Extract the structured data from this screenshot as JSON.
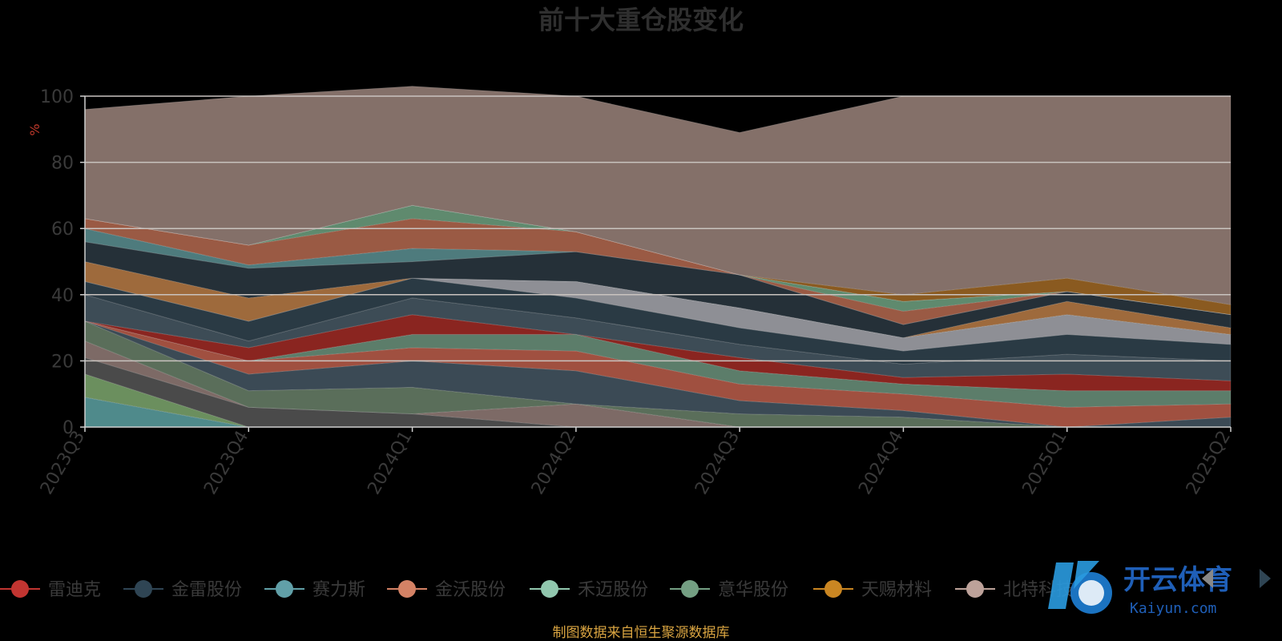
{
  "chart_data": {
    "type": "area",
    "title": "前十大重仓股变化",
    "ylabel": "%",
    "ylim": [
      0,
      100
    ],
    "yticks": [
      0,
      20,
      40,
      60,
      80,
      100
    ],
    "categories": [
      "2023Q3",
      "2023Q4",
      "2024Q1",
      "2024Q2",
      "2024Q3",
      "2024Q4",
      "2025Q1",
      "2025Q2"
    ],
    "grid": true,
    "legend_position": "bottom",
    "stacked": true,
    "series": [
      {
        "name": "",
        "color": "#4f8a8b",
        "values": [
          9,
          0,
          0,
          0,
          0,
          0,
          0,
          0
        ]
      },
      {
        "name": "",
        "color": "#6b8f5e",
        "values": [
          7,
          0,
          0,
          0,
          0,
          0,
          0,
          0
        ]
      },
      {
        "name": "",
        "color": "#4a4a4a",
        "values": [
          5,
          6,
          4,
          0,
          0,
          0,
          0,
          0
        ]
      },
      {
        "name": "",
        "color": "#7d6a66",
        "values": [
          5,
          0,
          0,
          7,
          0,
          0,
          0,
          0
        ]
      },
      {
        "name": "",
        "color": "#5a6e5a",
        "values": [
          6,
          5,
          8,
          0,
          4,
          3,
          0,
          0
        ]
      },
      {
        "name": "",
        "color": "#3b4a55",
        "values": [
          0,
          5,
          8,
          10,
          4,
          2,
          0,
          3
        ]
      },
      {
        "name": "",
        "color": "#a05040",
        "values": [
          0,
          4,
          4,
          6,
          5,
          5,
          6,
          4
        ]
      },
      {
        "name": "",
        "color": "#5c7d6a",
        "values": [
          0,
          0,
          4,
          5,
          4,
          3,
          5,
          4
        ]
      },
      {
        "name": "",
        "color": "#8a2520",
        "values": [
          0,
          4,
          6,
          0,
          4,
          2,
          5,
          3
        ]
      },
      {
        "name": "",
        "color": "#3d4c56",
        "values": [
          8,
          2,
          5,
          5,
          4,
          4,
          6,
          6
        ]
      },
      {
        "name": "",
        "color": "#2a3a44",
        "values": [
          4,
          6,
          6,
          6,
          5,
          4,
          6,
          5
        ]
      },
      {
        "name": "",
        "color": "#8e8f95",
        "values": [
          0,
          0,
          0,
          5,
          6,
          4,
          6,
          3
        ]
      },
      {
        "name": "",
        "color": "#9e6a3c",
        "values": [
          6,
          7,
          0,
          0,
          0,
          0,
          4,
          2
        ]
      },
      {
        "name": "",
        "color": "#253038",
        "values": [
          6,
          9,
          5,
          9,
          10,
          4,
          3,
          4
        ]
      },
      {
        "name": "",
        "color": "#4e7b7d",
        "values": [
          4,
          1,
          4,
          0,
          0,
          0,
          0,
          0
        ]
      },
      {
        "name": "",
        "color": "#9a5a44",
        "values": [
          3,
          6,
          9,
          6,
          0,
          4,
          0,
          0
        ]
      },
      {
        "name": "",
        "color": "#5f8a6e",
        "values": [
          0,
          0,
          4,
          0,
          0,
          3,
          0,
          0
        ]
      },
      {
        "name": "",
        "color": "#2f6a4e",
        "values": [
          0,
          0,
          0,
          0,
          0,
          0,
          0,
          0
        ]
      },
      {
        "name": "",
        "color": "#8a5a20",
        "values": [
          0,
          0,
          0,
          0,
          0,
          2,
          4,
          3
        ]
      },
      {
        "name": "",
        "color": "#847069",
        "values": [
          33,
          45,
          36,
          41,
          43,
          60,
          55,
          63
        ]
      }
    ]
  },
  "legend": [
    {
      "name": "雷迪克",
      "color": "#c23531"
    },
    {
      "name": "金雷股份",
      "color": "#2f4554"
    },
    {
      "name": "赛力斯",
      "color": "#61a0a8"
    },
    {
      "name": "金沃股份",
      "color": "#d48265"
    },
    {
      "name": "禾迈股份",
      "color": "#91c7ae"
    },
    {
      "name": "意华股份",
      "color": "#749f83"
    },
    {
      "name": "天赐材料",
      "color": "#ca8622"
    },
    {
      "name": "北特科技",
      "color": "#bda29a"
    }
  ],
  "source": "制图数据来自恒生聚源数据库",
  "watermark": {
    "text": "开云体育",
    "sub": "Kaiyun.com"
  }
}
